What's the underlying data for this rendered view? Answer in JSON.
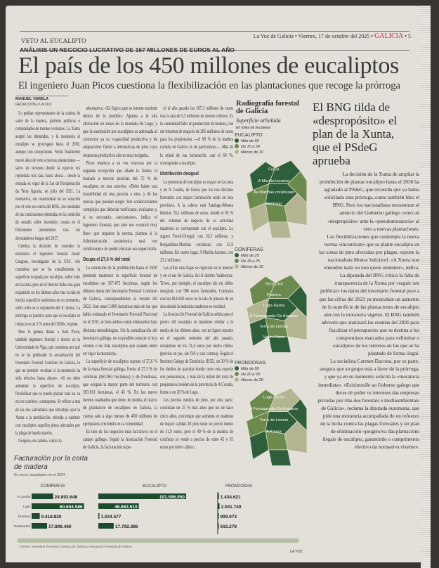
{
  "header": {
    "section": "VETO AL EUCALIPTO",
    "newspaper": "La Voz de Galicia",
    "date": "Viernes, 17 de octubre del 2025",
    "section_name": "GALICIA",
    "page": "5"
  },
  "article": {
    "kicker": "ANÁLISIS UN NEGOCIO LUCRATIVO DE 167 MILLONES DE EUROS AL AÑO",
    "title": "El país de los 450 millones de eucaliptos",
    "subtitle": "El ingeniero Juan Picos cuestiona la flexibilización en las plantaciones que recoge la prórroga",
    "author": "MANUEL VARELA",
    "author_desk": "REDACCIÓN / LA VOZ",
    "columns": [
      [
        "Lo pedían representantes de la cadena de valor de la madera, partidos políticos o comunidades de montes vecinales. La Xunta aceptó las demandas, y la moratoria al eucalipto se prorrogará hasta el 2030, aunque con excepciones. Serán finalmente nueve años de veto a nuevas plantaciones —salvo en terrenos donde la especie era repoblada tras tala, hasta ahora— desde la entrada en vigor de la Lei de Recuperación da Terra Agraria, en julio del 2021. La normativa, sin unanimidad en su votación por el voto en contra del BNG, fue resultado de las conclusiones obtenidas en la comisión de estudio sobre incendios creada en el Parlamento autonómico tras los devastadores fuegos del 2017.",
        "Celebra la decisión de extender la moratoria el ingeniero forestal Javier Gorgoso, investigador de la USC. «Se considera que se ha extralimitado la superficie ocupada por eucalipto, sobre todo en la costa, pero en el interior hubo una gran expansión en los últimos años tras la tala de mucha superficie autóctona en su momento, sobre todo en la expansión del E. nitens. La prórroga es positiva para que el eucalipto se reduzca en un 5 % antes del 2030», expone.",
        "Pero le genera dudas a Juan Picos, también ingeniero forestal y doctor en la Universidade de Vigo, que cuestiona por qué no se ha publicado la actualización del Inventario Forestal Continuo de Galicia, lo que no permite «evaluar si la moratoria ha sido efectiva hasta ahora». «Si no debe aumentar la superficie de eucalipto, flexibilizar que se puede plantar más no va en ese camino», contrapone. Se refiere a una de las dos salvedades que introdujo ayer la Xunta a la prohibición, referida a sustituir con eucaliptos aquellos pinos afectados por la plaga de banda marrón.",
        "Gorgoso, en cambio, valora la"
      ],
      [
        "alternativa: «Es lógico que se intente sustituir dentro de lo posible». Apunta a la alta afectación en zonas de la montaña de Lugo, y que la sustitución por eucaliptos es adecuada al conocerse ya su «capacidad productiva y de adaptación» frente a alternativas de pino cuya respuesta productiva aún es una incógnita.",
        "Picos muestra a su vez reservas por la segunda excepción que añade la Xunta: el traslado a nuevas parcelas del 75 % de eucaliptos en una anterior. «Debe haber una trazabilidad de una parcela a otra, y de las nuevas que puedan surgir. Son condicionantes complejos que deberán verificarse, evaluarse y, si es necesario, sancionarse», indica el ingeniero forestal, que ante ese «control muy fino» que requiere la norma, plantea si la Administración autonómica está «en condiciones» de poder efectuar esa supervisión.",
        "#Ocupa el 27,6 % del total",
        "La extensión de la prohibición hasta el 2030 pretende mantener la superficie forestal de eucaliptos en 367.472 hectáreas, según los últimos datos del Inventario Forestal Continuo de Galicia, correspondientes al verano del 2022. Son unas 5.000 hectáreas más de las que había estimado el Inventario Forestal Nacional en el 2011, si bien ambos están elaborados bajo distintas metodologías. Sin la actualización del inventario gallego, no es posible conocer si hoy existen o no más eucaliptos que cuando entró en vigor la moratoria.",
        "La superficie de eucaliptos supone el 27,6 % de la masa forestal gallega, frente al 27,3 % de coníferas (363.963 hectáreas) y de frondosas, que ocupan la mayor parte del territorio con 593.011 hectáreas, el 45 %. En los nueve metros cuadrados que tiene, de media, el marco de plantación de eucaliptos en Galicia, la cuenta sale a algo menos de 450 millones de ejemplares creciendo en la comunidad.",
        "Es uno de los negocios más lucrativos en el campo gallego. Según la Asociación Forestal de Galicia, la facturación supe-"
      ],
      [
        "ró el año pasado los 167,3 millones de euros tras la tala de 5,3 millones de metros cúbicos. Es la comunidad líder en producción de madera, con un volumen de negocio de 285 millones de euros para los propietarios —el 98 % de la madera cortada en Galicia es de particulares—. Más de la mitad de esa facturación, casi el 60 %, corresponde a eucalipto.",
        "#Distribución desigual",
        "La presencia del eucalipto es mayor en la costa y en A Coruña, de forma que los tres distritos forestales con mayor facturación están en esta provincia. A la cabeza está Santiago-Meseta Interior, 35,1 millones de euros, donde el 83 % del volumen de negocio de su actividad maderera se corresponde con el eucalipto. Lo siguen Ferrol-Ortegal, con 26,3 millones, y Bergantiños-Mariñas coruñesas, con 25,9 millones. En cuarto lugar, A Mariña lucense, con 23,2 millones.",
        "Las cifras más bajas se registran en el interior y en el sur de Galicia. En el distrito Valdeorras-Trives, por ejemplo, el eucalipto dio un rédito marginal, con 598 euros facturados. Contrasta con los 814.858 euros en la tala de pinares de un área donde la industria maderera es residual.",
        "La Asociación Forestal de Galicia señala que el precio del eucalipto se mantiene similar a la media de los últimos años, con un ligero repunte en el segundo semestre del año pasado, situándose en los 31,4 euros por metro cúbico (precios en pie, sin IVA y con corteza). Según el Instituto Galego de Estatística (IGE), un 30 % de los dueños de parcelas donde crece esta especie son pensionistas, y más de la mitad del total de propietarios residen en la provincia de A Coruña, frente a un 26 % de Lugo.",
        "Los precios medios de pino, por otra parte, continúan un 25 % más altos que los de hace cinco años, porcentaje que aumenta en maderas de mayor calidad. El pino tiene un precio medio de 31,9 euros, pero el 40 % de la madera de coníferas se vende a precios de entre 42 y 65 euros por metro cúbico."
      ]
    ]
  },
  "sidebar": {
    "title": "El BNG tilda de «despropósito» el plan de la Xunta, que el PSdeG aprueba",
    "paragraphs": [
      "La decisión de la Xunta de ampliar la prohibición de plantar eucalipto hasta el 2030 ha agradado al PSdeG, que recuerda que ya había solicitado esta prórroga, como también hizo el BNG. Pero los nacionalistas encuentran el anuncio del Gobierno gallego como un «despropósito» ante la «pseudomoratoria» al veto a nuevas plantaciones.",
      "Las flexibilizaciones que contempla la nueva norma «incentivan» que se plante eucalipto en las zonas de pino afectadas por plagas, expone la nacionalista Monse Valcárcel. «A Xunta non entendeu nada ou non quere entender», indica.",
      "La diputada del BNG critica la falta de transparencia de la Xunta por «seguir sen publicar» los datos del inventario forestal pese a que las cifras del 2023 ya mostraban un aumento de la superficie de las plantaciones de eucalipto aún con la moratoria vigente. El BNG también advierte que analizará las cuentas del 2026 para fiscalizar el presupuesto que se destina a los compromisos marcados para «eliminar o eucalipto» de los terrenos en los que se ha plantado de forma ilegal.",
      "La socialista Carmen Dacosta, por su parte, asegura que su grupo está a favor de la prórroga, y que ya en su momento solicitó la «moratoria inmediata». «Esiximoslle ao Goberno galego que deixe de poñer os intereses das empresas privadas por riba dos forestais e medioambientais de Galicia», reclama la diputada ourensana, que pide una moratoria acompañada de un refuerzo de la lucha contra las plagas forestales y un plan de eliminación «progresiva das plantacións ilegais de eucalipto, garantindo o cumprimento efectivo da normativa vixente»."
    ]
  },
  "maps": {
    "title": "Radiografía forestal de Galicia",
    "subtitle": "Superficie arbolada",
    "unit": "En miles de hectáreas",
    "colors": {
      "high": "#2f5e3a",
      "mid": "#6d8a4e",
      "low": "#b3b592"
    },
    "blocks": [
      {
        "name": "EUCALIPTO",
        "legend": [
          "Más de 50",
          "De 10 a 50",
          "Menos de 10"
        ],
        "labels": [
          "Ferrol",
          "A Mariña lucense",
          "As Mariñas coruñesas",
          "Santiago"
        ]
      },
      {
        "name": "CONÍFERAS",
        "legend": [
          "Más de 25",
          "De 15 a 25",
          "Menos de 15"
        ],
        "labels": [
          "Terra Chá",
          "Fisterra",
          "Lugo-Sarria",
          "A Fonsagrada-Os Ancares",
          "Terra de Lemos",
          "Verín-Viana"
        ]
      },
      {
        "name": "FRONDOSAS",
        "legend": [
          "Más de 50",
          "De 20 a 50",
          "Menos de 20"
        ],
        "labels": [
          "Lugo-Sarria",
          "A Fonsagrada-Os Ancares",
          "Terra de Lemos",
          "A Arnoia"
        ]
      }
    ]
  },
  "chart_data": {
    "type": "bar",
    "title": "Facturación por la corta de madera",
    "subtitle": "En euros recaudados en el 2024",
    "categories": [
      "A Coruña",
      "Lugo",
      "Ourense",
      "Pontevedra"
    ],
    "groups": [
      {
        "name": "CONÍFERAS",
        "values": [
          24893648,
          60604586,
          9418820,
          17898460
        ],
        "labels": [
          "24.893.648",
          "60.604.586",
          "9.418.820",
          "17.898.460"
        ]
      },
      {
        "name": "EUCALIPTO",
        "values": [
          101596950,
          46863610,
          1034577,
          17792386
        ],
        "labels": [
          "101.596.950",
          "46.863.610",
          "1.034.577",
          "17.792.386"
        ]
      },
      {
        "name": "FRONDOSAS",
        "values": [
          1434621,
          2041749,
          999973,
          616278
        ],
        "labels": [
          "1.434.621",
          "2.041.749",
          "999.973",
          "616.278"
        ]
      }
    ],
    "bar_color": "#1d4a2c",
    "source": "Fuente: Inventario Forestal Continuo de Galicia y Asociación Forestal de Galicia",
    "credit": "LA VOZ"
  }
}
